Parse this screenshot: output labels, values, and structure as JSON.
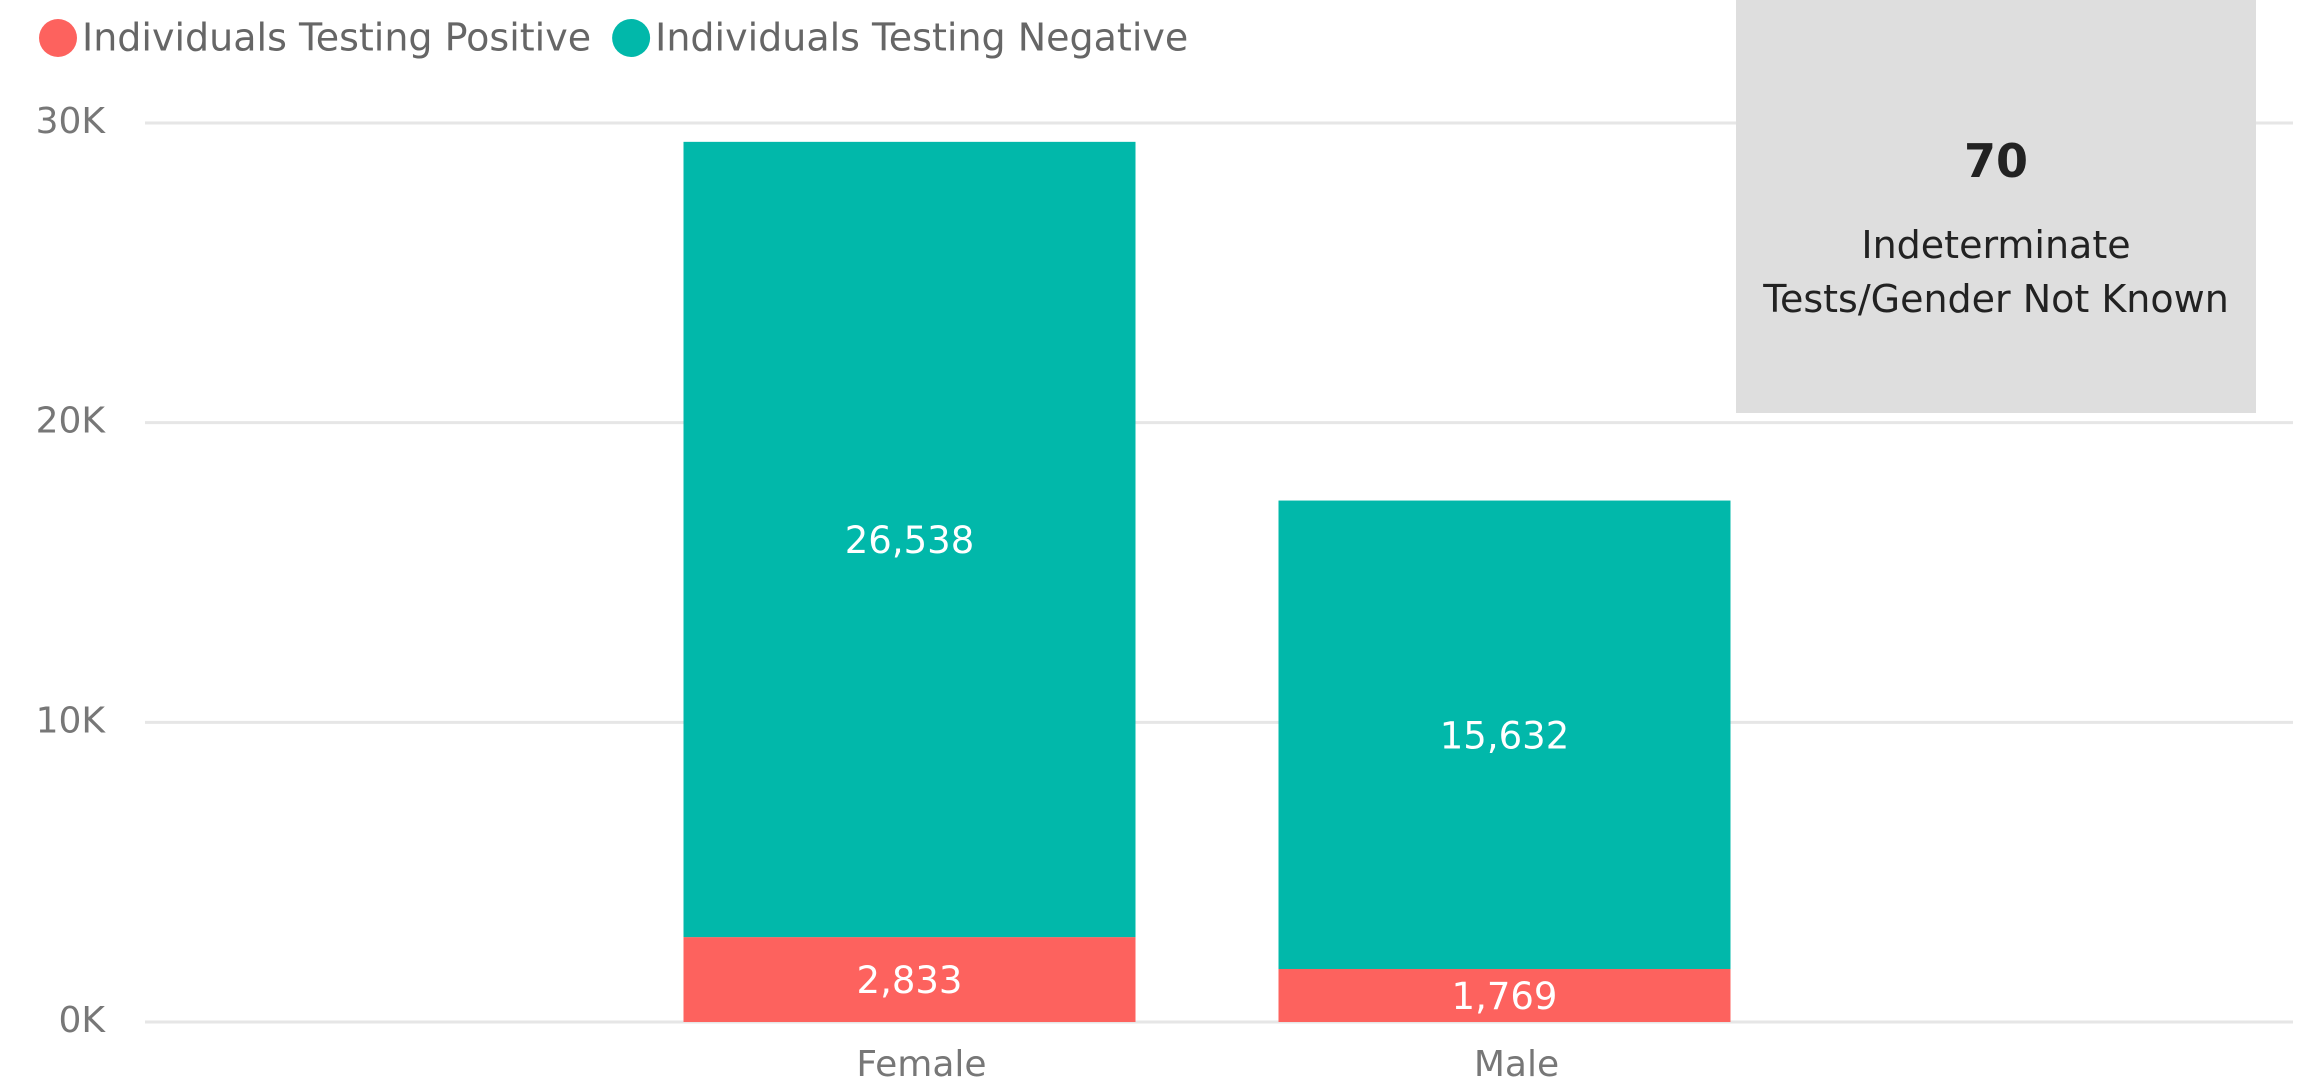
{
  "chart_data": {
    "type": "stacked_bar",
    "categories": [
      "Female",
      "Male"
    ],
    "series": [
      {
        "name": "Individuals Testing Positive",
        "color": "#fd625e",
        "values": [
          2833,
          1769
        ],
        "value_labels": [
          "2,833",
          "1,769"
        ]
      },
      {
        "name": "Individuals Testing Negative",
        "color": "#01b8aa",
        "values": [
          26538,
          15632
        ],
        "value_labels": [
          "26,538",
          "15,632"
        ]
      }
    ],
    "ylim": [
      0,
      30000
    ],
    "yticks": [
      {
        "value": 0,
        "label": "0K"
      },
      {
        "value": 10000,
        "label": "10K"
      },
      {
        "value": 20000,
        "label": "20K"
      },
      {
        "value": 30000,
        "label": "30K"
      }
    ],
    "grid": true,
    "legend": "top-left"
  },
  "card": {
    "value": 70,
    "label": "Indeterminate Tests/Gender Not Known"
  }
}
